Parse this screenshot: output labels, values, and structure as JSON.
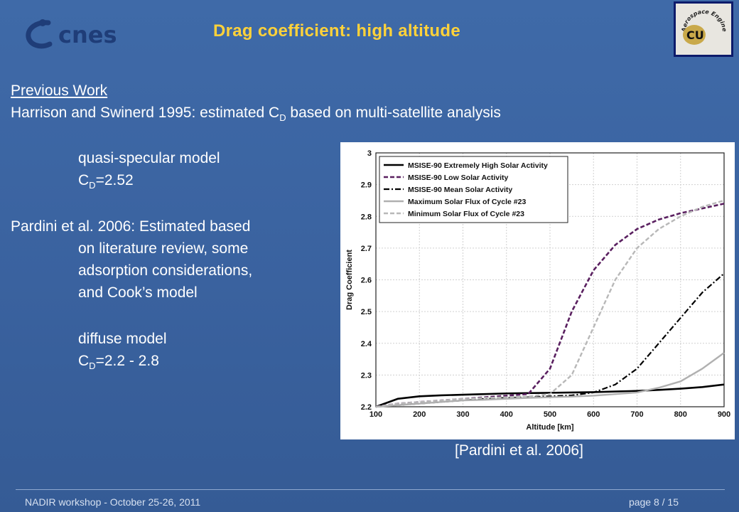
{
  "header": {
    "title": "Drag coefficient: high altitude",
    "cnes_logo_text": "cnes",
    "cu_logo_text": "Aerospace Engineering",
    "cu_logo_mark": "CU"
  },
  "body": {
    "heading": "Previous Work",
    "line1_a": "Harrison and Swinerd 1995: estimated C",
    "line1_sub": "D",
    "line1_b": " based on multi-satellite analysis",
    "model1": "quasi-specular model",
    "cd1_c": "C",
    "cd1_sub": "D",
    "cd1_val": "=2.52",
    "pardini_1": "Pardini et al. 2006: Estimated based",
    "pardini_2": "on literature review, some",
    "pardini_3": "adsorption considerations,",
    "pardini_4": "and Cook’s model",
    "model2": "diffuse model",
    "cd2_c": "C",
    "cd2_sub": "D",
    "cd2_val": "=2.2 - 2.8"
  },
  "caption": "[Pardini et al.  2006]",
  "footer": {
    "left": "NADIR workshop  -  October 25-26, 2011",
    "right": "page 8 / 15"
  },
  "colors": {
    "title": "#ffd23a",
    "background": "#3d66a4"
  },
  "chart_data": {
    "type": "line",
    "xlabel": "Altitude [km]",
    "ylabel": "Drag Coefficient",
    "xlim": [
      100,
      900
    ],
    "ylim": [
      2.2,
      3.0
    ],
    "xticks": [
      100,
      200,
      300,
      400,
      500,
      600,
      700,
      800,
      900
    ],
    "yticks": [
      2.2,
      2.3,
      2.4,
      2.5,
      2.6,
      2.7,
      2.8,
      2.9,
      3.0
    ],
    "xtick_labels": [
      "100",
      "200",
      "300",
      "400",
      "500",
      "600",
      "700",
      "800",
      "900"
    ],
    "ytick_labels": [
      "2.2",
      "2.3",
      "2.4",
      "2.5",
      "2.6",
      "2.7",
      "2.8",
      "2.9",
      "3"
    ],
    "grid": true,
    "legend_position": "top-left",
    "x": [
      100,
      150,
      200,
      250,
      300,
      350,
      400,
      450,
      500,
      550,
      600,
      650,
      700,
      750,
      800,
      850,
      900
    ],
    "series": [
      {
        "name": "MSISE-90 Extremely High Solar Activity",
        "color": "#000000",
        "dash": "solid",
        "width": 2.6,
        "values": [
          2.2,
          2.225,
          2.233,
          2.236,
          2.238,
          2.24,
          2.242,
          2.243,
          2.244,
          2.245,
          2.246,
          2.248,
          2.25,
          2.253,
          2.257,
          2.262,
          2.27
        ]
      },
      {
        "name": "MSISE-90 Low Solar Activity",
        "color": "#5a2060",
        "dash": "6,3",
        "width": 2.6,
        "values": [
          2.2,
          2.21,
          2.215,
          2.22,
          2.225,
          2.23,
          2.235,
          2.24,
          2.32,
          2.5,
          2.63,
          2.71,
          2.76,
          2.79,
          2.81,
          2.825,
          2.84
        ]
      },
      {
        "name": "MSISE-90 Mean Solar Activity",
        "color": "#000000",
        "dash": "8,3,2,3",
        "width": 2.2,
        "values": [
          2.2,
          2.205,
          2.21,
          2.215,
          2.22,
          2.225,
          2.228,
          2.23,
          2.233,
          2.236,
          2.245,
          2.27,
          2.32,
          2.4,
          2.48,
          2.56,
          2.62
        ]
      },
      {
        "name": "Maximum Solar Flux of Cycle #23",
        "color": "#b0b0b0",
        "dash": "solid",
        "width": 2.4,
        "values": [
          2.2,
          2.205,
          2.21,
          2.215,
          2.22,
          2.222,
          2.225,
          2.228,
          2.23,
          2.232,
          2.235,
          2.24,
          2.245,
          2.26,
          2.28,
          2.32,
          2.37
        ]
      },
      {
        "name": "Minimum Solar Flux of Cycle #23",
        "color": "#b8b8b8",
        "dash": "6,3",
        "width": 2.4,
        "values": [
          2.2,
          2.21,
          2.215,
          2.22,
          2.225,
          2.228,
          2.23,
          2.232,
          2.24,
          2.3,
          2.45,
          2.6,
          2.7,
          2.76,
          2.8,
          2.83,
          2.85
        ]
      }
    ]
  }
}
